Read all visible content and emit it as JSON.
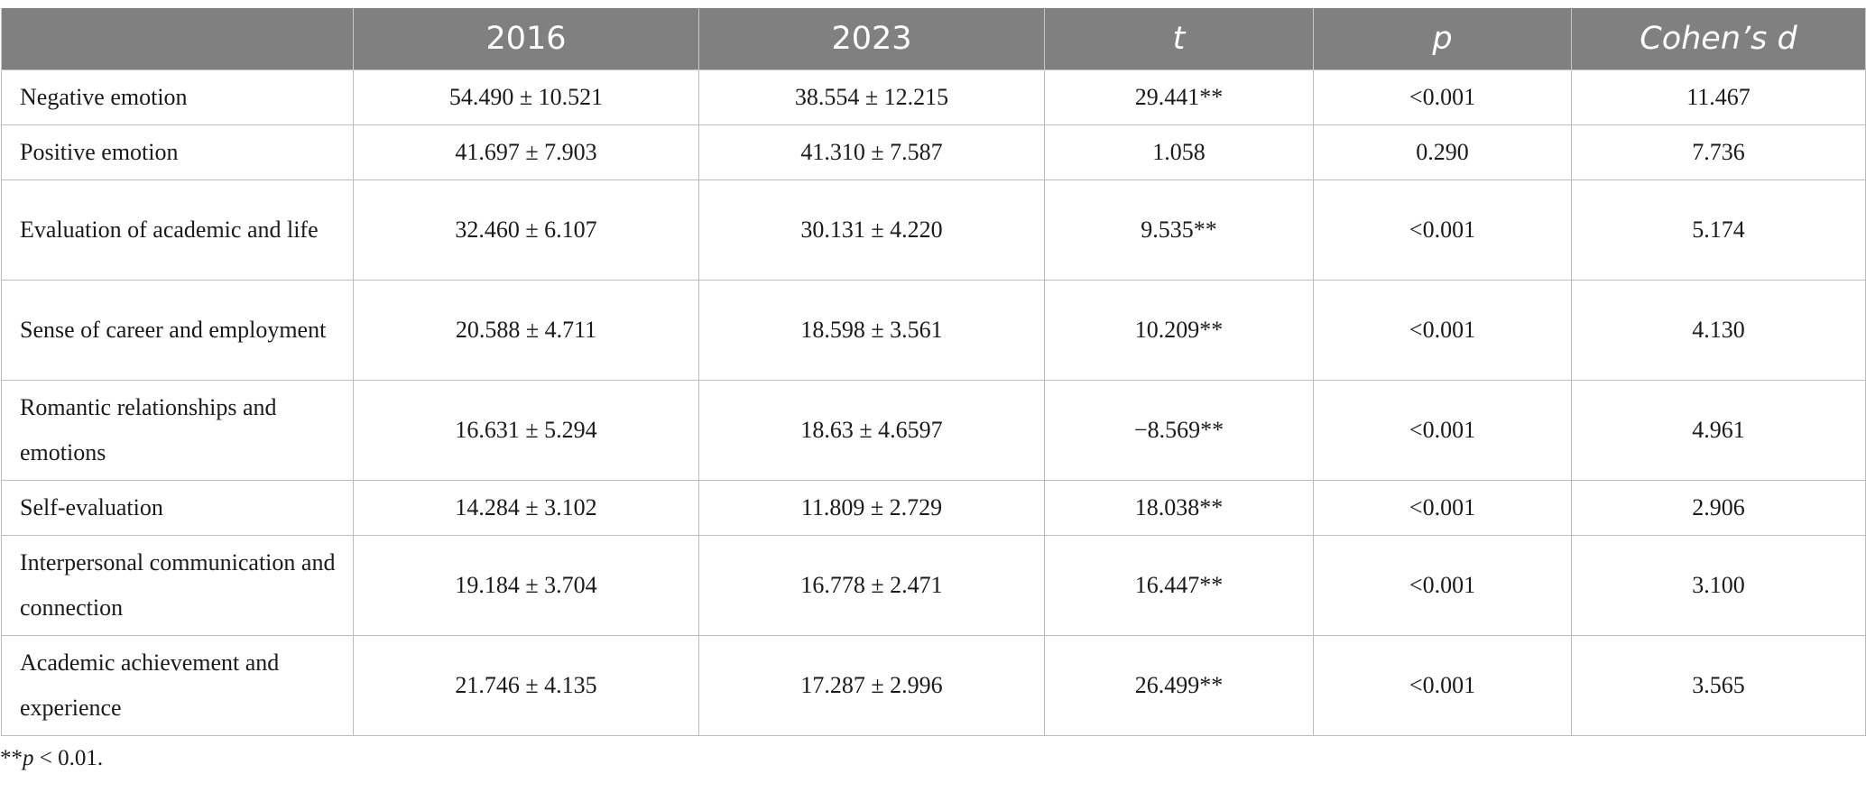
{
  "table": {
    "headers": [
      "",
      "2016",
      "2023",
      "t",
      "p",
      "Cohen’s d"
    ],
    "rows": [
      {
        "label": "Negative emotion",
        "v2016": "54.490 ± 10.521",
        "v2023": "38.554 ± 12.215",
        "t": "29.441**",
        "p": "<0.001",
        "d": "11.467"
      },
      {
        "label": "Positive emotion",
        "v2016": "41.697 ± 7.903",
        "v2023": "41.310 ± 7.587",
        "t": "1.058",
        "p": "0.290",
        "d": "7.736"
      },
      {
        "label": "Evaluation of academic and life",
        "v2016": "32.460 ± 6.107",
        "v2023": "30.131 ± 4.220",
        "t": "9.535**",
        "p": "<0.001",
        "d": "5.174"
      },
      {
        "label": "Sense of career and employment",
        "v2016": "20.588 ± 4.711",
        "v2023": "18.598 ± 3.561",
        "t": "10.209**",
        "p": "<0.001",
        "d": "4.130"
      },
      {
        "label": "Romantic relationships and emotions",
        "v2016": "16.631 ± 5.294",
        "v2023": "18.63 ± 4.6597",
        "t": "−8.569**",
        "p": "<0.001",
        "d": "4.961"
      },
      {
        "label": "Self-evaluation",
        "v2016": "14.284 ± 3.102",
        "v2023": "11.809 ± 2.729",
        "t": "18.038**",
        "p": "<0.001",
        "d": "2.906"
      },
      {
        "label": "Interpersonal communication and connection",
        "v2016": "19.184 ± 3.704",
        "v2023": "16.778 ± 2.471",
        "t": "16.447**",
        "p": "<0.001",
        "d": "3.100"
      },
      {
        "label": "Academic achievement and experience",
        "v2016": "21.746 ± 4.135",
        "v2023": "17.287 ± 2.996",
        "t": "26.499**",
        "p": "<0.001",
        "d": "3.565"
      }
    ]
  },
  "footnote": {
    "prefix": "**",
    "var": "p",
    "rest": " < 0.01."
  }
}
